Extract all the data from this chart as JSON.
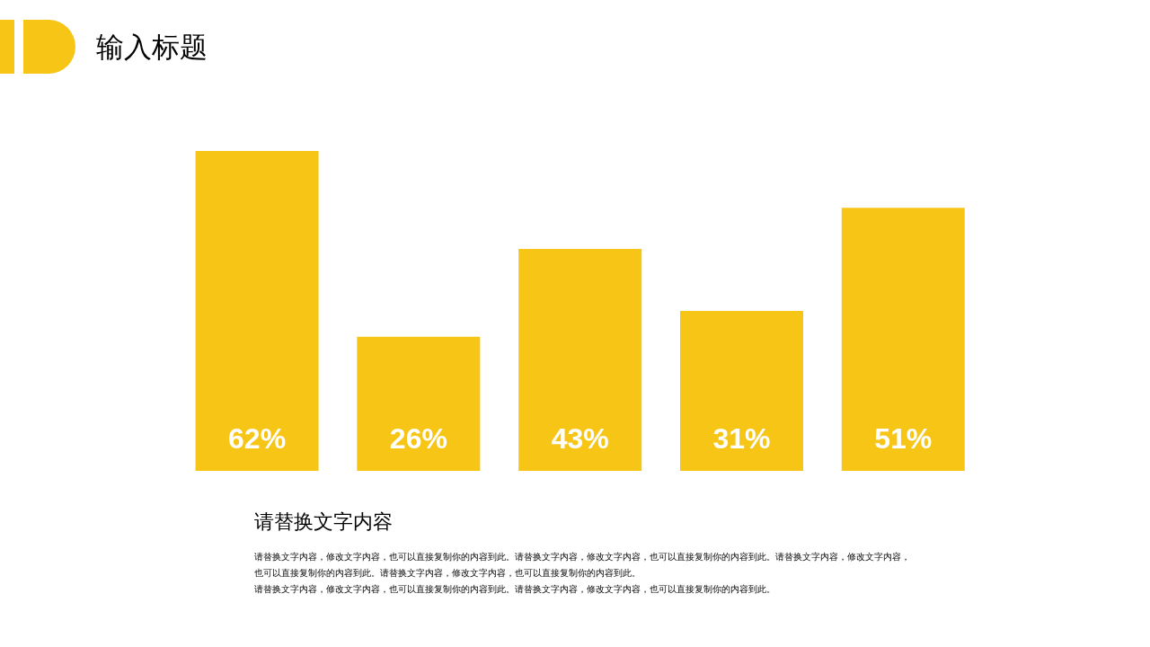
{
  "chart_data": {
    "type": "bar",
    "title": "输入标题",
    "categories": [
      null,
      null,
      null,
      null,
      null
    ],
    "values": [
      62,
      26,
      43,
      31,
      51
    ],
    "color": "#f6c515",
    "data_labels": true,
    "value_labels": [
      "62%",
      "26%",
      "43%",
      "31%",
      "51%"
    ],
    "annotations": [
      "请替换文字内容",
      "请替换文字内容，修改文字内容，也可以直接复制你的内容到此。请替换文字内容，修改文字内容，也可以直接复制你的内容到此。请替换文字内容，修改文字内容，也可以直接复制你的内容到此。请替换文字内容，修改文字内容，也可以直接复制你的内容到此。",
      "请替换文字内容，修改文字内容，也可以直接复制你的内容到此。请替换文字内容，修改文字内容，也可以直接复制你的内容到此。"
    ]
  }
}
